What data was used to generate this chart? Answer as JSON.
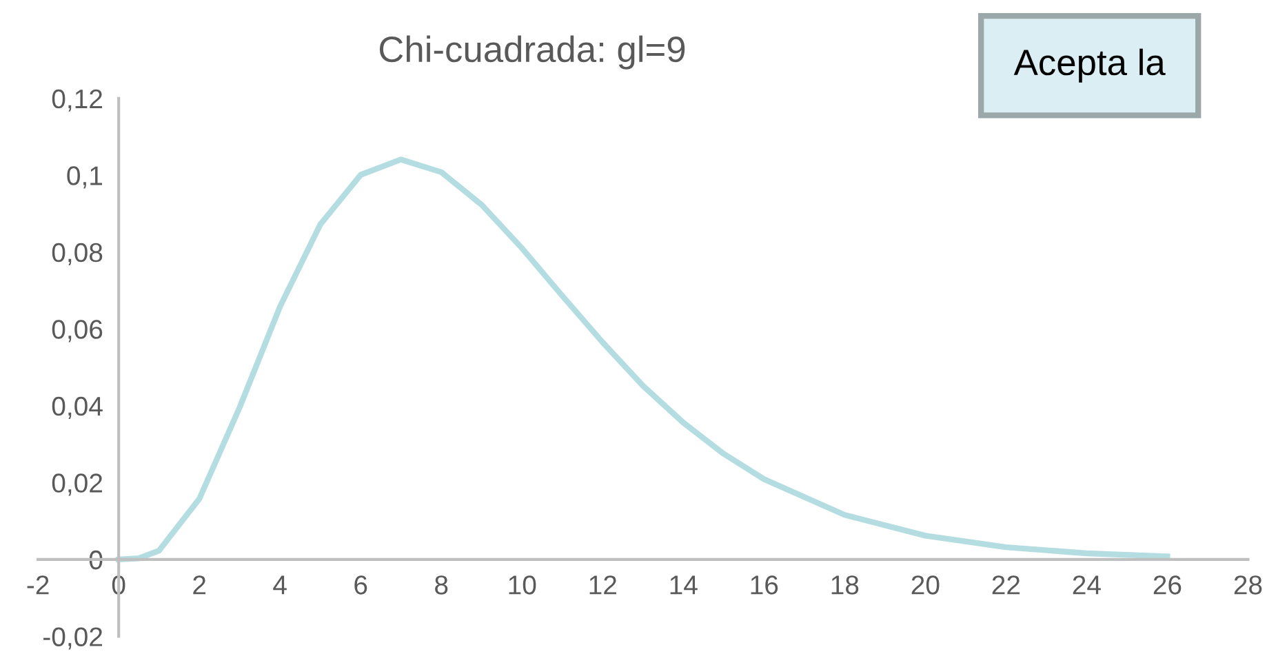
{
  "chart_data": {
    "type": "line",
    "title": "Chi-cuadrada: gl=9",
    "annotations": [
      "Acepta la"
    ],
    "x": [
      0,
      0.5,
      1,
      2,
      3,
      4,
      5,
      6,
      7,
      8,
      9,
      10,
      11,
      12,
      13,
      14,
      15,
      16,
      18,
      20,
      22,
      24,
      26
    ],
    "series": [
      {
        "color": "#b4dde1",
        "values": [
          0,
          0.0003,
          0.0023,
          0.0158,
          0.0396,
          0.0658,
          0.0872,
          0.1001,
          0.1041,
          0.1008,
          0.0923,
          0.081,
          0.0686,
          0.0565,
          0.0452,
          0.0356,
          0.0275,
          0.0209,
          0.0116,
          0.0062,
          0.0032,
          0.0016,
          0.0008
        ]
      }
    ],
    "xlim": [
      -2,
      28
    ],
    "xticks": [
      -2,
      0,
      2,
      4,
      6,
      8,
      10,
      12,
      14,
      16,
      18,
      20,
      22,
      24,
      26,
      28
    ],
    "ylim": [
      -0.02,
      0.12
    ],
    "yticks": [
      {
        "value": -0.02,
        "label": "-0,02"
      },
      {
        "value": 0,
        "label": "0"
      },
      {
        "value": 0.02,
        "label": "0,02"
      },
      {
        "value": 0.04,
        "label": "0,04"
      },
      {
        "value": 0.06,
        "label": "0,06"
      },
      {
        "value": 0.08,
        "label": "0,08"
      },
      {
        "value": 0.1,
        "label": "0,1"
      },
      {
        "value": 0.12,
        "label": "0,12"
      }
    ],
    "grid": false,
    "legend": false,
    "marker": "none",
    "line_style": "solid"
  }
}
